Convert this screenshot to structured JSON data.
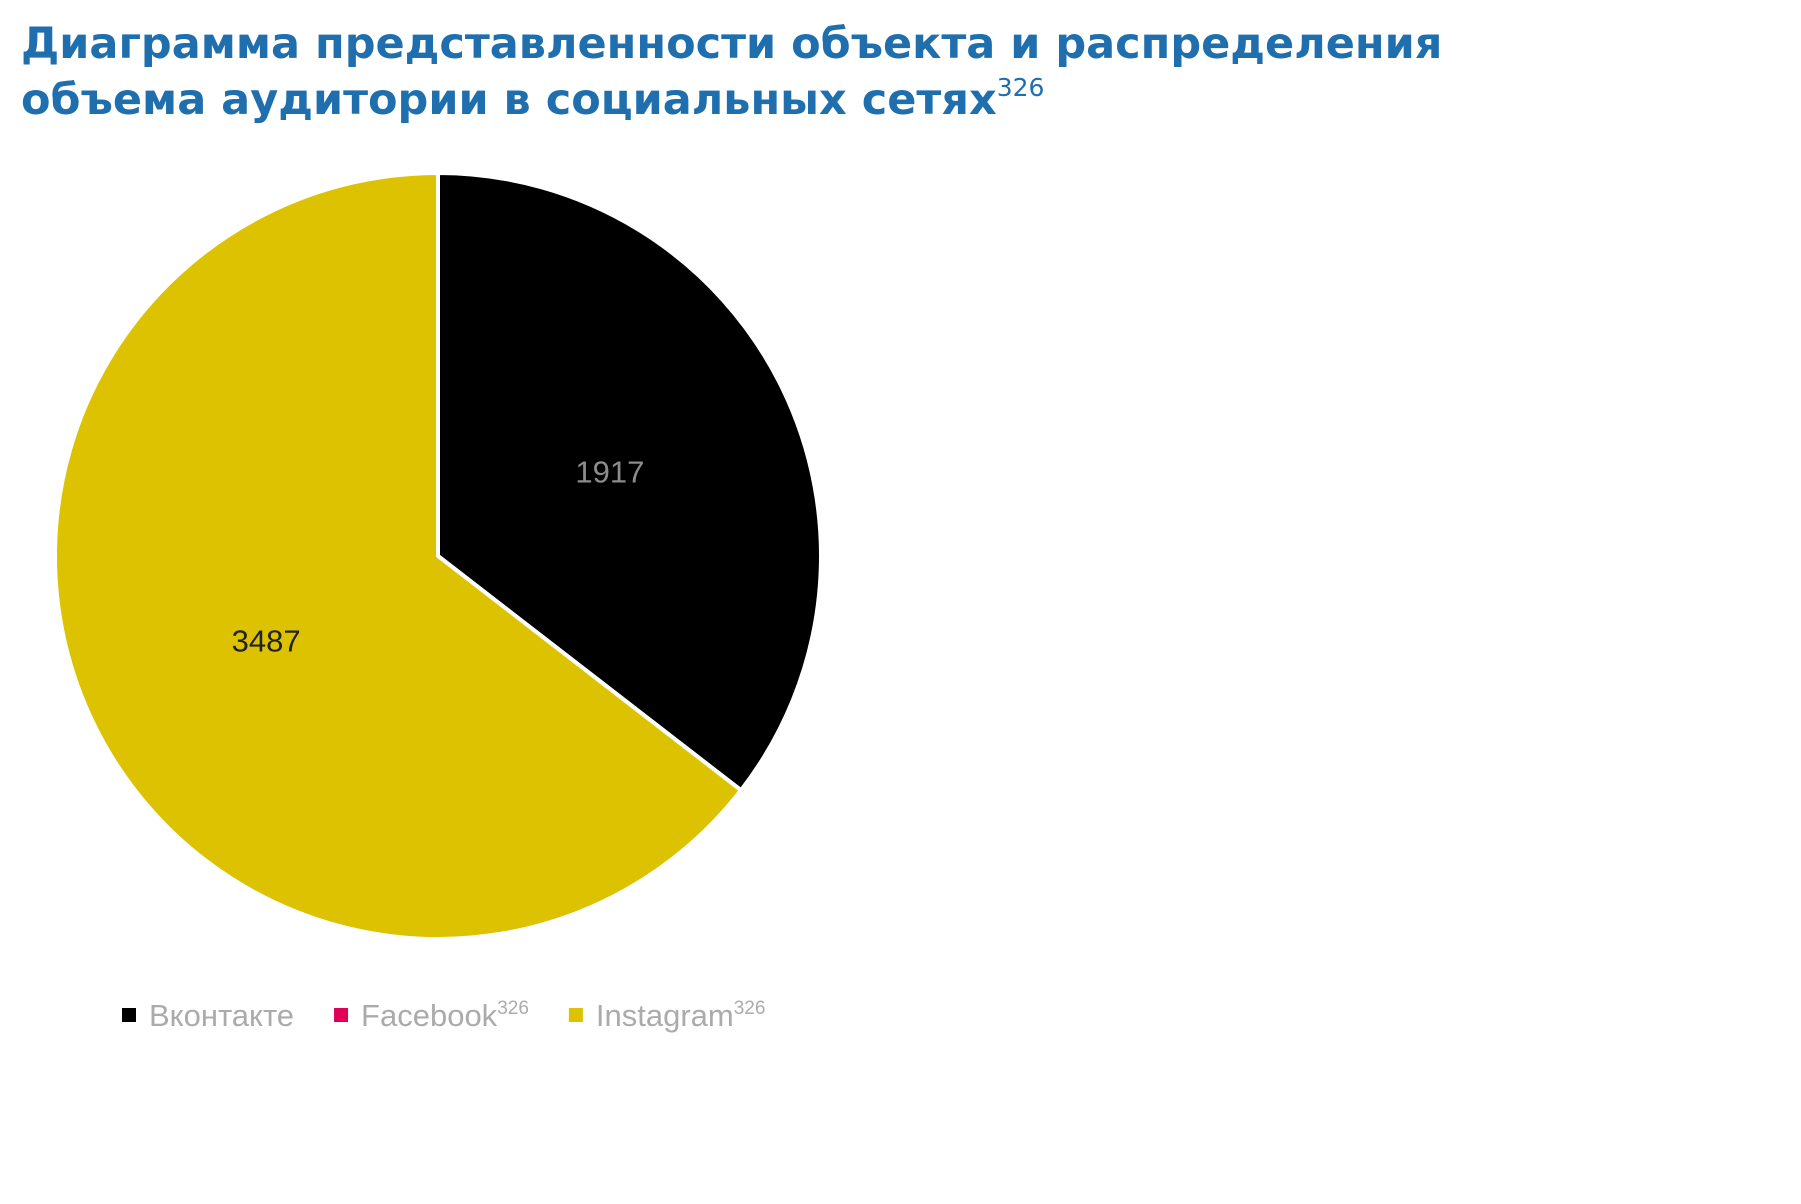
{
  "chart_data": {
    "type": "pie",
    "title_lines": [
      "Диаграмма представленности объекта и распределения",
      "объема аудитории в социальных сетях"
    ],
    "title_footnote": "326",
    "categories": [
      "Вконтакте",
      "Facebook",
      "Instagram"
    ],
    "category_footnotes": [
      null,
      "326",
      "326"
    ],
    "values": [
      1917,
      0,
      3487
    ],
    "colors": [
      "#000000",
      "#e0005a",
      "#dcc200"
    ],
    "value_label_colors": [
      "#8c8c8c",
      "#8c8c8c",
      "#222222"
    ]
  }
}
